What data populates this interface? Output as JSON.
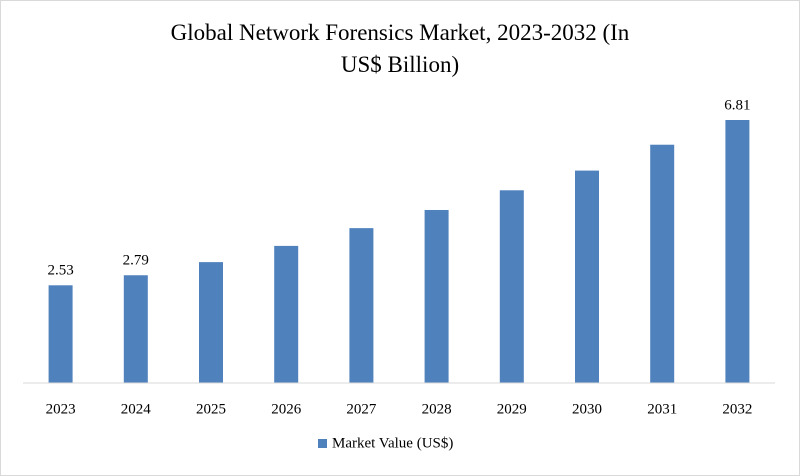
{
  "chart_data": {
    "type": "bar",
    "title": "Global Network Forensics Market, 2023-2032 (In US$ Billion)",
    "categories": [
      "2023",
      "2024",
      "2025",
      "2026",
      "2027",
      "2028",
      "2029",
      "2030",
      "2031",
      "2032"
    ],
    "series": [
      {
        "name": "Market Value (US$)",
        "color": "#4f81bd",
        "values": [
          2.53,
          2.79,
          3.13,
          3.55,
          4.01,
          4.48,
          4.99,
          5.5,
          6.17,
          6.81
        ],
        "value_labels": [
          "2.53",
          "2.79",
          null,
          null,
          null,
          null,
          null,
          null,
          null,
          "6.81"
        ]
      }
    ],
    "legend": "bottom"
  }
}
